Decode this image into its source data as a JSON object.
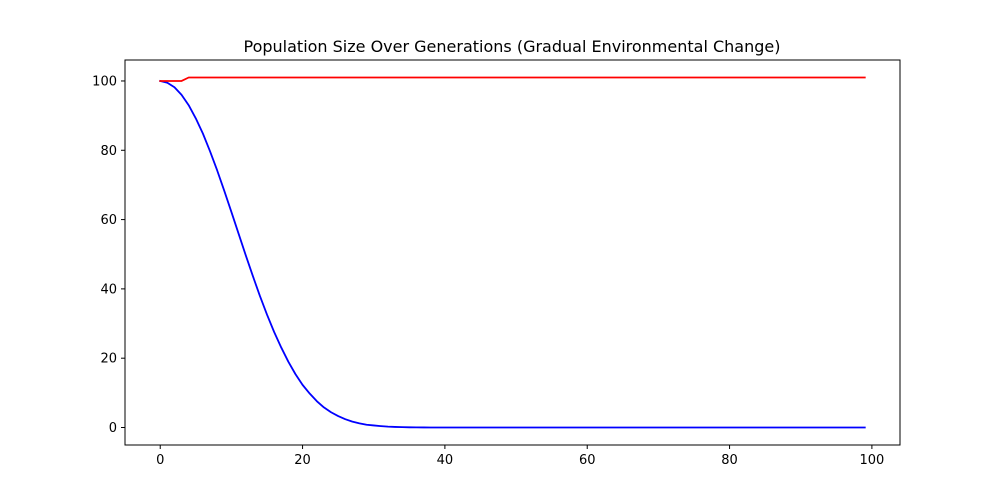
{
  "chart_data": {
    "type": "line",
    "title": "Population Size Over Generations (Gradual Environmental Change)",
    "xlabel": "",
    "ylabel": "",
    "xlim": [
      -4.95,
      103.95
    ],
    "ylim": [
      -5.05,
      106.05
    ],
    "x_ticks": [
      0,
      20,
      40,
      60,
      80,
      100
    ],
    "y_ticks": [
      0,
      20,
      40,
      60,
      80,
      100
    ],
    "x_tick_labels": [
      "0",
      "20",
      "40",
      "60",
      "80",
      "100"
    ],
    "y_tick_labels": [
      "0",
      "20",
      "40",
      "60",
      "80",
      "100"
    ],
    "grid": false,
    "legend": null,
    "series": [
      {
        "color": "#0000ff",
        "x": [
          0,
          1,
          2,
          3,
          4,
          5,
          6,
          7,
          8,
          9,
          10,
          11,
          12,
          13,
          14,
          15,
          16,
          17,
          18,
          19,
          20,
          21,
          22,
          23,
          24,
          25,
          26,
          27,
          28,
          29,
          30,
          31,
          32,
          33,
          34,
          35,
          36,
          37,
          38,
          39,
          40,
          41,
          42,
          43,
          44,
          45,
          46,
          47,
          48,
          49,
          50,
          51,
          52,
          53,
          54,
          55,
          56,
          57,
          58,
          59,
          60,
          61,
          62,
          63,
          64,
          65,
          66,
          67,
          68,
          69,
          70,
          71,
          72,
          73,
          74,
          75,
          76,
          77,
          78,
          79,
          80,
          81,
          82,
          83,
          84,
          85,
          86,
          87,
          88,
          89,
          90,
          91,
          92,
          93,
          94,
          95,
          96,
          97,
          98,
          99
        ],
        "y": [
          100,
          99.5,
          98.2,
          96,
          93,
          89.2,
          84.8,
          79.7,
          74.2,
          68.3,
          62.2,
          56,
          49.8,
          43.8,
          38,
          32.6,
          27.6,
          23.1,
          19,
          15.4,
          12.3,
          9.8,
          7.6,
          5.8,
          4.4,
          3.3,
          2.4,
          1.7,
          1.2,
          0.8,
          0.6,
          0.4,
          0.25,
          0.16,
          0.1,
          0.06,
          0.04,
          0.02,
          0.01,
          0.01,
          0,
          0,
          0,
          0,
          0,
          0,
          0,
          0,
          0,
          0,
          0,
          0,
          0,
          0,
          0,
          0,
          0,
          0,
          0,
          0,
          0,
          0,
          0,
          0,
          0,
          0,
          0,
          0,
          0,
          0,
          0,
          0,
          0,
          0,
          0,
          0,
          0,
          0,
          0,
          0,
          0,
          0,
          0,
          0,
          0,
          0,
          0,
          0,
          0,
          0,
          0,
          0,
          0,
          0,
          0,
          0,
          0,
          0,
          0,
          0
        ]
      },
      {
        "color": "#ff0000",
        "x": [
          0,
          1,
          2,
          3,
          4,
          5,
          10,
          20,
          30,
          40,
          50,
          60,
          70,
          80,
          90,
          99
        ],
        "y": [
          100,
          100,
          100,
          100,
          101,
          101,
          101,
          101,
          101,
          101,
          101,
          101,
          101,
          101,
          101,
          101
        ]
      }
    ]
  }
}
